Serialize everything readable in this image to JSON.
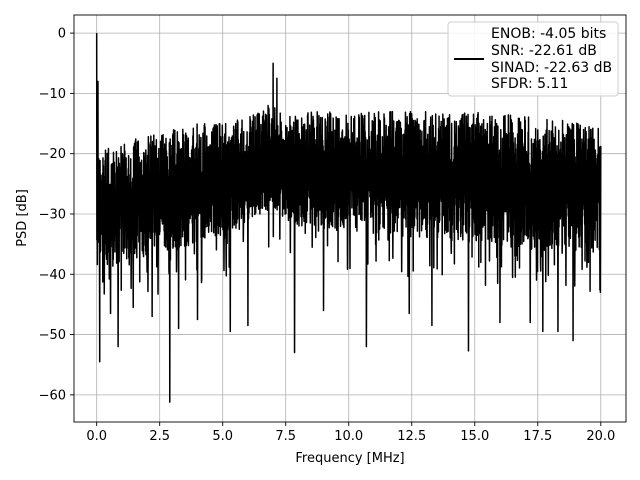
{
  "chart_data": {
    "type": "line",
    "title": "",
    "xlabel": "Frequency [MHz]",
    "ylabel": "PSD [dB]",
    "xlim": [
      -0.9,
      21.0
    ],
    "ylim": [
      -64.5,
      3.0
    ],
    "xticks": [
      0.0,
      2.5,
      5.0,
      7.5,
      10.0,
      12.5,
      15.0,
      17.5,
      20.0
    ],
    "xtick_labels": [
      "0.0",
      "2.5",
      "5.0",
      "7.5",
      "10.0",
      "12.5",
      "15.0",
      "17.5",
      "20.0"
    ],
    "yticks": [
      0,
      -10,
      -20,
      -30,
      -40,
      -50,
      -60
    ],
    "ytick_labels": [
      "0",
      "−10",
      "−20",
      "−30",
      "−40",
      "−50",
      "−60"
    ],
    "grid": true,
    "legend_position": "top-right",
    "legend_entries": [
      "ENOB: -4.05 bits",
      "SNR: -22.61 dB",
      "SINAD: -22.63 dB",
      "SFDR: 5.11"
    ],
    "series": [
      {
        "color": "#000000",
        "x_range": [
          0.0,
          20.0
        ],
        "dense_points": 2400,
        "envelope": {
          "x": [
            0.0,
            0.5,
            1.0,
            2.0,
            3.0,
            4.0,
            5.0,
            6.0,
            6.5,
            7.0,
            7.5,
            8.0,
            10.0,
            12.5,
            15.0,
            17.5,
            20.0
          ],
          "upper": [
            -20,
            -19,
            -18,
            -17,
            -16,
            -15,
            -15,
            -14,
            -13,
            -12,
            -14,
            -13,
            -13,
            -13,
            -13,
            -14,
            -15
          ],
          "lower": [
            -40,
            -39,
            -38,
            -37,
            -36,
            -35,
            -34,
            -32,
            -30,
            -29,
            -31,
            -32,
            -33,
            -34,
            -35,
            -36,
            -36
          ]
        },
        "features": [
          {
            "x": 0.0,
            "y": 0.0
          },
          {
            "x": 0.05,
            "y": -8.0
          },
          {
            "x": 0.12,
            "y": -54.5
          },
          {
            "x": 0.55,
            "y": -46.5
          },
          {
            "x": 0.85,
            "y": -52.0
          },
          {
            "x": 1.45,
            "y": -45.5
          },
          {
            "x": 2.2,
            "y": -47.0
          },
          {
            "x": 2.9,
            "y": -61.2
          },
          {
            "x": 3.25,
            "y": -49.0
          },
          {
            "x": 4.0,
            "y": -47.5
          },
          {
            "x": 5.3,
            "y": -49.5
          },
          {
            "x": 6.0,
            "y": -48.5
          },
          {
            "x": 6.8,
            "y": -12.0
          },
          {
            "x": 7.0,
            "y": -5.0
          },
          {
            "x": 7.15,
            "y": -7.5
          },
          {
            "x": 7.85,
            "y": -53.0
          },
          {
            "x": 9.0,
            "y": -46.0
          },
          {
            "x": 10.7,
            "y": -52.0
          },
          {
            "x": 12.4,
            "y": -46.5
          },
          {
            "x": 13.3,
            "y": -48.5
          },
          {
            "x": 14.75,
            "y": -52.7
          },
          {
            "x": 16.0,
            "y": -48.0
          },
          {
            "x": 17.2,
            "y": -48.0
          },
          {
            "x": 17.7,
            "y": -49.5
          },
          {
            "x": 18.3,
            "y": -49.5
          },
          {
            "x": 18.9,
            "y": -51.0
          }
        ]
      }
    ]
  }
}
